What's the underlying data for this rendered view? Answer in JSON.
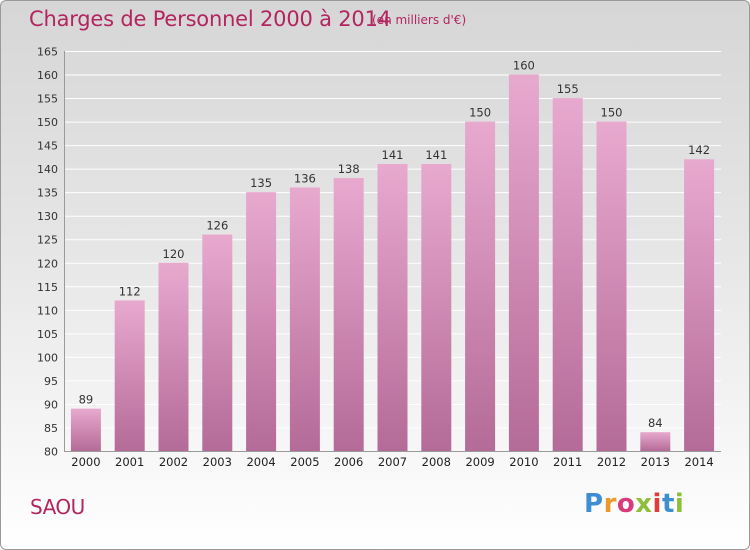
{
  "title": "Charges de Personnel 2000 à 2014",
  "subtitle": "(en milliers d'€)",
  "commune": "SAOU",
  "logo": {
    "letters": [
      "P",
      "r",
      "o",
      "x",
      "i",
      "t",
      "i"
    ],
    "colors": [
      "#3e8fd2",
      "#e89b2a",
      "#d83a7a",
      "#8fbf3a",
      "#e03b3b",
      "#3e8fd2",
      "#8fbf3a"
    ]
  },
  "colors": {
    "bar_top": "#e8a9cf",
    "bar_bottom": "#b46b97",
    "title": "#b3255f"
  },
  "chart_data": {
    "type": "bar",
    "title": "Charges de Personnel 2000 à 2014",
    "categories": [
      "2000",
      "2001",
      "2002",
      "2003",
      "2004",
      "2005",
      "2006",
      "2007",
      "2008",
      "2009",
      "2010",
      "2011",
      "2012",
      "2013",
      "2014"
    ],
    "values": [
      89,
      112,
      120,
      126,
      135,
      136,
      138,
      141,
      141,
      150,
      160,
      155,
      150,
      84,
      142
    ],
    "ylim": [
      80,
      165
    ],
    "yticks": [
      80,
      85,
      90,
      95,
      100,
      105,
      110,
      115,
      120,
      125,
      130,
      135,
      140,
      145,
      150,
      155,
      160,
      165
    ],
    "grid": true,
    "xlabel": "",
    "ylabel": ""
  }
}
